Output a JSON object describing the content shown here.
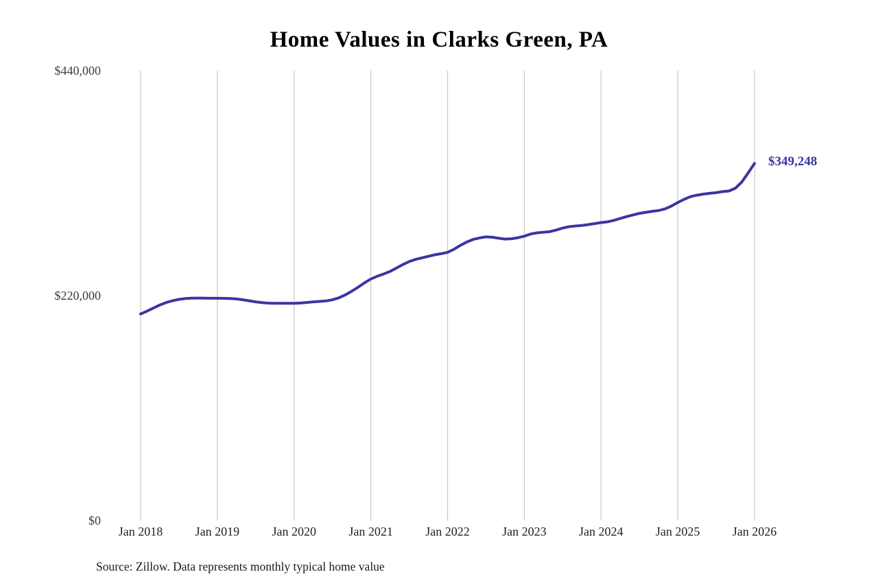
{
  "page": {
    "background": "#ffffff"
  },
  "colors": {
    "line": "#3b35a2",
    "grid": "#cccccc",
    "end_label": "#3b35a2"
  },
  "source_note": "Source: Zillow. Data represents monthly typical home value",
  "chart_data": {
    "type": "line",
    "title": "Home Values in Clarks Green, PA",
    "xlabel": "",
    "ylabel": "",
    "x_unit": "month",
    "x_start": "2018-01",
    "x_end": "2026-01",
    "x_frequency": "monthly",
    "xticks": [
      "Jan 2018",
      "Jan 2019",
      "Jan 2020",
      "Jan 2021",
      "Jan 2022",
      "Jan 2023",
      "Jan 2024",
      "Jan 2025",
      "Jan 2026"
    ],
    "yticks": [
      {
        "label": "$440,000",
        "value": 440000
      },
      {
        "label": "$220,000",
        "value": 220000
      },
      {
        "label": "$0",
        "value": 0
      }
    ],
    "ylim": [
      0,
      440000
    ],
    "grid": "vertical-only",
    "legend": "none",
    "end_label": "$349,248",
    "latest_value": 349248,
    "series_name": "Typical home value",
    "values": [
      202000,
      204800,
      207800,
      210800,
      213200,
      215000,
      216300,
      217100,
      217500,
      217600,
      217500,
      217400,
      217400,
      217300,
      217100,
      216700,
      215900,
      214900,
      213900,
      213100,
      212600,
      212400,
      212400,
      212500,
      212500,
      212700,
      213300,
      213900,
      214300,
      214800,
      215900,
      217800,
      220700,
      224200,
      228200,
      232400,
      236200,
      238900,
      241100,
      243600,
      246900,
      250300,
      253300,
      255400,
      256900,
      258400,
      259900,
      261000,
      262300,
      265300,
      269100,
      272400,
      274900,
      276400,
      277400,
      277100,
      276100,
      275300,
      275600,
      276600,
      278100,
      280200,
      281400,
      282000,
      282600,
      284100,
      286000,
      287400,
      288100,
      288600,
      289400,
      290400,
      291400,
      292100,
      293600,
      295400,
      297300,
      298900,
      300400,
      301400,
      302400,
      303200,
      304800,
      307500,
      311000,
      314200,
      316800,
      318200,
      319300,
      320000,
      320700,
      321700,
      322300,
      325000,
      331000,
      340000,
      349248
    ]
  }
}
